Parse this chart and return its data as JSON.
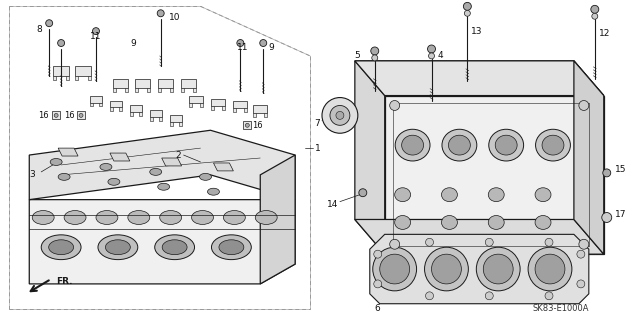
{
  "background_color": "#ffffff",
  "diagram_code": "SK83-E1000A",
  "fr_label": "FR.",
  "line_color": "#1a1a1a",
  "text_color": "#111111",
  "label_fontsize": 6.5,
  "diagram_fontsize": 6.0,
  "border_dash_color": "#999999",
  "gray_light": "#e8e8e8",
  "gray_mid": "#cccccc",
  "gray_dark": "#aaaaaa",
  "white": "#ffffff",
  "near_black": "#222222"
}
